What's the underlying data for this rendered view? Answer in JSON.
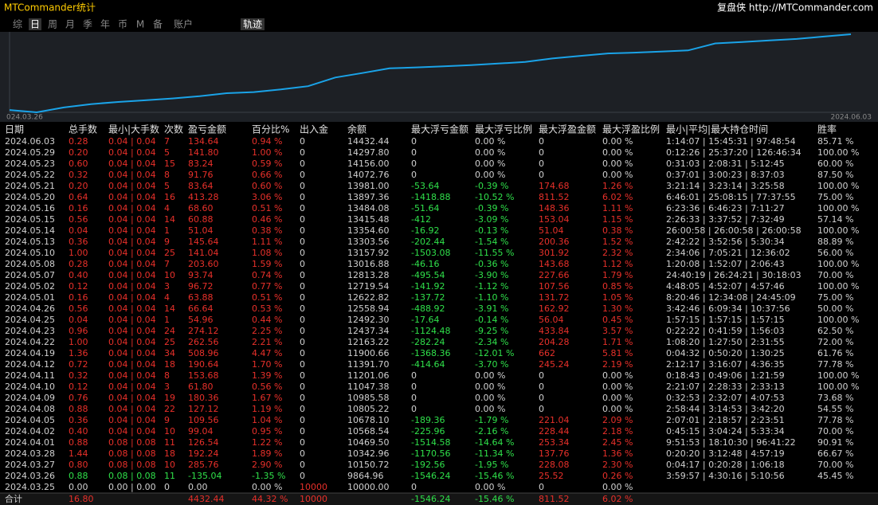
{
  "header": {
    "title": "MTCommander统计",
    "right": "复盘侠 http://MTCommander.com"
  },
  "tabs": [
    "综",
    "日",
    "周",
    "月",
    "季",
    "年",
    "币",
    "M",
    "备",
    "账户"
  ],
  "active_tab": 1,
  "track_tab": "轨迹",
  "chart": {
    "start_label": "024.03.26",
    "end_label": "2024.06.03"
  },
  "table": {
    "columns": [
      "日期",
      "总手数",
      "最小|大手数",
      "次数",
      "盈亏金额",
      "百分比%",
      "出入金",
      "余额",
      "最大浮亏金额",
      "最大浮亏比例",
      "最大浮盈金额",
      "最大浮盈比例",
      "最小|平均|最大持仓时间",
      "胜率"
    ],
    "rows": [
      [
        "2024.06.03",
        "0.28",
        "0.04 | 0.04",
        "7",
        "134.64",
        "0.94 %",
        "0",
        "14432.44",
        "0",
        "0.00 %",
        "0",
        "0.00 %",
        "1:14:07 | 15:45:31 | 97:48:54",
        "85.71 %"
      ],
      [
        "2024.05.29",
        "0.20",
        "0.04 | 0.04",
        "5",
        "141.80",
        "1.00 %",
        "0",
        "14297.80",
        "0",
        "0.00 %",
        "0",
        "0.00 %",
        "0:12:26 | 25:37:20 | 126:46:34",
        "100.00 %"
      ],
      [
        "2024.05.23",
        "0.60",
        "0.04 | 0.04",
        "15",
        "83.24",
        "0.59 %",
        "0",
        "14156.00",
        "0",
        "0.00 %",
        "0",
        "0.00 %",
        "0:31:03 | 2:08:31 | 5:12:45",
        "60.00 %"
      ],
      [
        "2024.05.22",
        "0.32",
        "0.04 | 0.04",
        "8",
        "91.76",
        "0.66 %",
        "0",
        "14072.76",
        "0",
        "0.00 %",
        "0",
        "0.00 %",
        "0:37:01 | 3:00:23 | 8:37:03",
        "87.50 %"
      ],
      [
        "2024.05.21",
        "0.20",
        "0.04 | 0.04",
        "5",
        "83.64",
        "0.60 %",
        "0",
        "13981.00",
        "-53.64",
        "-0.39 %",
        "174.68",
        "1.26 %",
        "3:21:14 | 3:23:14 | 3:25:58",
        "100.00 %"
      ],
      [
        "2024.05.20",
        "0.64",
        "0.04 | 0.04",
        "16",
        "413.28",
        "3.06 %",
        "0",
        "13897.36",
        "-1418.88",
        "-10.52 %",
        "811.52",
        "6.02 %",
        "6:46:01 | 25:08:15 | 77:37:55",
        "75.00 %"
      ],
      [
        "2024.05.16",
        "0.16",
        "0.04 | 0.04",
        "4",
        "68.60",
        "0.51 %",
        "0",
        "13484.08",
        "-51.64",
        "-0.39 %",
        "148.36",
        "1.11 %",
        "6:23:36 | 6:46:23 | 7:11:27",
        "100.00 %"
      ],
      [
        "2024.05.15",
        "0.56",
        "0.04 | 0.04",
        "14",
        "60.88",
        "0.46 %",
        "0",
        "13415.48",
        "-412",
        "-3.09 %",
        "153.04",
        "1.15 %",
        "2:26:33 | 3:37:52 | 7:32:49",
        "57.14 %"
      ],
      [
        "2024.05.14",
        "0.04",
        "0.04 | 0.04",
        "1",
        "51.04",
        "0.38 %",
        "0",
        "13354.60",
        "-16.92",
        "-0.13 %",
        "51.04",
        "0.38 %",
        "26:00:58 | 26:00:58 | 26:00:58",
        "100.00 %"
      ],
      [
        "2024.05.13",
        "0.36",
        "0.04 | 0.04",
        "9",
        "145.64",
        "1.11 %",
        "0",
        "13303.56",
        "-202.44",
        "-1.54 %",
        "200.36",
        "1.52 %",
        "2:42:22 | 3:52:56 | 5:30:34",
        "88.89 %"
      ],
      [
        "2024.05.10",
        "1.00",
        "0.04 | 0.04",
        "25",
        "141.04",
        "1.08 %",
        "0",
        "13157.92",
        "-1503.08",
        "-11.55 %",
        "301.92",
        "2.32 %",
        "2:34:06 | 7:05:21 | 12:36:02",
        "56.00 %"
      ],
      [
        "2024.05.08",
        "0.28",
        "0.04 | 0.04",
        "7",
        "203.60",
        "1.59 %",
        "0",
        "13016.88",
        "-46.16",
        "-0.36 %",
        "143.68",
        "1.12 %",
        "1:20:08 | 1:52:07 | 2:06:43",
        "100.00 %"
      ],
      [
        "2024.05.07",
        "0.40",
        "0.04 | 0.04",
        "10",
        "93.74",
        "0.74 %",
        "0",
        "12813.28",
        "-495.54",
        "-3.90 %",
        "227.66",
        "1.79 %",
        "24:40:19 | 26:24:21 | 30:18:03",
        "70.00 %"
      ],
      [
        "2024.05.02",
        "0.12",
        "0.04 | 0.04",
        "3",
        "96.72",
        "0.77 %",
        "0",
        "12719.54",
        "-141.92",
        "-1.12 %",
        "107.56",
        "0.85 %",
        "4:48:05 | 4:52:07 | 4:57:46",
        "100.00 %"
      ],
      [
        "2024.05.01",
        "0.16",
        "0.04 | 0.04",
        "4",
        "63.88",
        "0.51 %",
        "0",
        "12622.82",
        "-137.72",
        "-1.10 %",
        "131.72",
        "1.05 %",
        "8:20:46 | 12:34:08 | 24:45:09",
        "75.00 %"
      ],
      [
        "2024.04.26",
        "0.56",
        "0.04 | 0.04",
        "14",
        "66.64",
        "0.53 %",
        "0",
        "12558.94",
        "-488.92",
        "-3.91 %",
        "162.92",
        "1.30 %",
        "3:42:46 | 6:09:34 | 10:37:56",
        "50.00 %"
      ],
      [
        "2024.04.25",
        "0.04",
        "0.04 | 0.04",
        "1",
        "54.96",
        "0.44 %",
        "0",
        "12492.30",
        "-17.64",
        "-0.14 %",
        "56.04",
        "0.45 %",
        "1:57:15 | 1:57:15 | 1:57:15",
        "100.00 %"
      ],
      [
        "2024.04.23",
        "0.96",
        "0.04 | 0.04",
        "24",
        "274.12",
        "2.25 %",
        "0",
        "12437.34",
        "-1124.48",
        "-9.25 %",
        "433.84",
        "3.57 %",
        "0:22:22 | 0:41:59 | 1:56:03",
        "62.50 %"
      ],
      [
        "2024.04.22",
        "1.00",
        "0.04 | 0.04",
        "25",
        "262.56",
        "2.21 %",
        "0",
        "12163.22",
        "-282.24",
        "-2.34 %",
        "204.28",
        "1.71 %",
        "1:08:20 | 1:27:50 | 2:31:55",
        "72.00 %"
      ],
      [
        "2024.04.19",
        "1.36",
        "0.04 | 0.04",
        "34",
        "508.96",
        "4.47 %",
        "0",
        "11900.66",
        "-1368.36",
        "-12.01 %",
        "662",
        "5.81 %",
        "0:04:32 | 0:50:20 | 1:30:25",
        "61.76 %"
      ],
      [
        "2024.04.12",
        "0.72",
        "0.04 | 0.04",
        "18",
        "190.64",
        "1.70 %",
        "0",
        "11391.70",
        "-414.64",
        "-3.70 %",
        "245.24",
        "2.19 %",
        "2:12:17 | 3:16:07 | 4:36:35",
        "77.78 %"
      ],
      [
        "2024.04.11",
        "0.32",
        "0.04 | 0.04",
        "8",
        "153.68",
        "1.39 %",
        "0",
        "11201.06",
        "0",
        "0.00 %",
        "0",
        "0.00 %",
        "0:18:43 | 0:49:06 | 1:21:59",
        "100.00 %"
      ],
      [
        "2024.04.10",
        "0.12",
        "0.04 | 0.04",
        "3",
        "61.80",
        "0.56 %",
        "0",
        "11047.38",
        "0",
        "0.00 %",
        "0",
        "0.00 %",
        "2:21:07 | 2:28:33 | 2:33:13",
        "100.00 %"
      ],
      [
        "2024.04.09",
        "0.76",
        "0.04 | 0.04",
        "19",
        "180.36",
        "1.67 %",
        "0",
        "10985.58",
        "0",
        "0.00 %",
        "0",
        "0.00 %",
        "0:32:53 | 2:32:07 | 4:07:53",
        "73.68 %"
      ],
      [
        "2024.04.08",
        "0.88",
        "0.04 | 0.04",
        "22",
        "127.12",
        "1.19 %",
        "0",
        "10805.22",
        "0",
        "0.00 %",
        "0",
        "0.00 %",
        "2:58:44 | 3:14:53 | 3:42:20",
        "54.55 %"
      ],
      [
        "2024.04.05",
        "0.36",
        "0.04 | 0.04",
        "9",
        "109.56",
        "1.04 %",
        "0",
        "10678.10",
        "-189.36",
        "-1.79 %",
        "221.04",
        "2.09 %",
        "2:07:01 | 2:18:57 | 2:23:51",
        "77.78 %"
      ],
      [
        "2024.04.02",
        "0.40",
        "0.04 | 0.04",
        "10",
        "99.04",
        "0.95 %",
        "0",
        "10568.54",
        "-225.96",
        "-2.16 %",
        "228.44",
        "2.18 %",
        "0:45:15 | 3:04:24 | 5:33:34",
        "70.00 %"
      ],
      [
        "2024.04.01",
        "0.88",
        "0.08 | 0.08",
        "11",
        "126.54",
        "1.22 %",
        "0",
        "10469.50",
        "-1514.58",
        "-14.64 %",
        "253.34",
        "2.45 %",
        "9:51:53 | 18:10:30 | 96:41:22",
        "90.91 %"
      ],
      [
        "2024.03.28",
        "1.44",
        "0.08 | 0.08",
        "18",
        "192.24",
        "1.89 %",
        "0",
        "10342.96",
        "-1170.56",
        "-11.34 %",
        "137.76",
        "1.36 %",
        "0:20:20 | 3:12:48 | 4:57:19",
        "66.67 %"
      ],
      [
        "2024.03.27",
        "0.80",
        "0.08 | 0.08",
        "10",
        "285.76",
        "2.90 %",
        "0",
        "10150.72",
        "-192.56",
        "-1.95 %",
        "228.08",
        "2.30 %",
        "0:04:17 | 0:20:28 | 1:06:18",
        "70.00 %"
      ],
      [
        "2024.03.26",
        "0.88",
        "0.08 | 0.08",
        "11",
        "-135.04",
        "-1.35 %",
        "0",
        "9864.96",
        "-1546.24",
        "-15.46 %",
        "25.52",
        "0.26 %",
        "3:59:57 | 4:30:16 | 5:10:56",
        "45.45 %"
      ],
      [
        "2024.03.25",
        "0.00",
        "0.00 | 0.00",
        "0",
        "0.00",
        "0.00 %",
        "10000",
        "10000.00",
        "0",
        "0.00 %",
        "0",
        "0.00 %",
        null,
        null
      ]
    ],
    "total": [
      "合计",
      "16.80",
      null,
      null,
      "4432.44",
      "44.32 %",
      "10000",
      null,
      "-1546.24",
      "-15.46 %",
      "811.52",
      "6.02 %",
      null,
      null
    ]
  }
}
